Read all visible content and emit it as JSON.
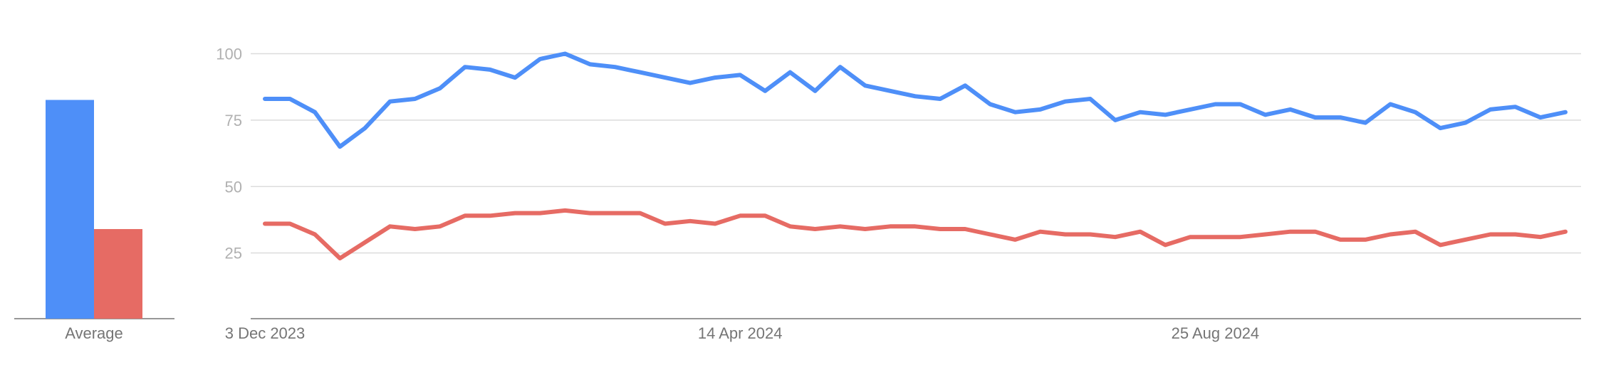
{
  "chart_data": [
    {
      "type": "bar",
      "categories": [
        "Average"
      ],
      "xlabel": "Average",
      "series": [
        {
          "color": "#4e8ff8",
          "values": [
            83
          ]
        },
        {
          "color": "#e66b64",
          "values": [
            34
          ]
        }
      ],
      "ylim": [
        0,
        100
      ],
      "grid": false
    },
    {
      "type": "line",
      "ylim": [
        0,
        100
      ],
      "yticks": [
        25,
        50,
        75,
        100
      ],
      "grid": true,
      "x_tick_labels": [
        {
          "index": 0,
          "label": "3 Dec 2023"
        },
        {
          "index": 19,
          "label": "14 Apr 2024"
        },
        {
          "index": 38,
          "label": "25 Aug 2024"
        }
      ],
      "series": [
        {
          "color": "#4e8ff8",
          "values": [
            83,
            83,
            78,
            65,
            72,
            82,
            83,
            87,
            95,
            94,
            91,
            98,
            100,
            96,
            95,
            93,
            91,
            89,
            91,
            92,
            86,
            93,
            86,
            95,
            88,
            86,
            84,
            83,
            88,
            81,
            78,
            79,
            82,
            83,
            75,
            78,
            77,
            79,
            81,
            81,
            77,
            79,
            76,
            76,
            74,
            81,
            78,
            72,
            74,
            79,
            80,
            76,
            78
          ]
        },
        {
          "color": "#e66b64",
          "values": [
            36,
            36,
            32,
            23,
            29,
            35,
            34,
            35,
            39,
            39,
            40,
            40,
            41,
            40,
            40,
            40,
            36,
            37,
            36,
            39,
            39,
            35,
            34,
            35,
            34,
            35,
            35,
            34,
            34,
            32,
            30,
            33,
            32,
            32,
            31,
            33,
            28,
            31,
            31,
            31,
            32,
            33,
            33,
            30,
            30,
            32,
            33,
            28,
            30,
            32,
            32,
            31,
            33
          ]
        }
      ]
    }
  ]
}
